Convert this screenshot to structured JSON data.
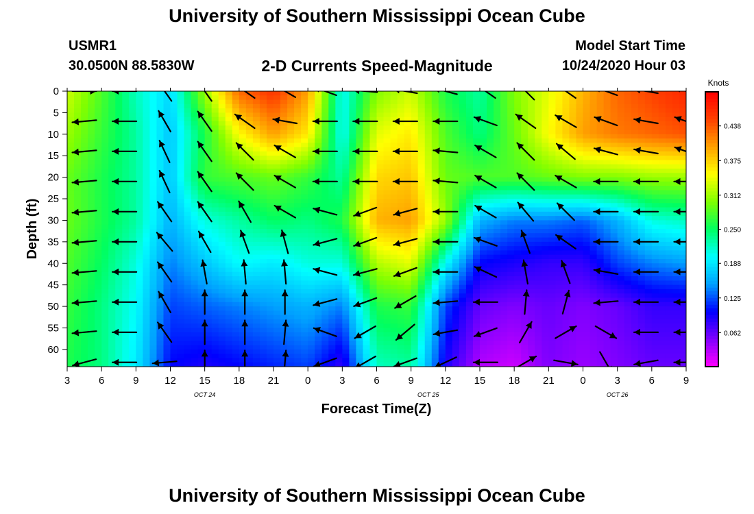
{
  "header": {
    "title": "University of Southern Mississippi Ocean Cube",
    "station_id": "USMR1",
    "station_coords": "30.0500N 88.5830W",
    "chart_title": "2-D Currents Speed-Magnitude",
    "model_start_label": "Model Start Time",
    "model_start_value": "10/24/2020 Hour 03"
  },
  "footer": {
    "title": "University of Southern Mississippi Ocean Cube"
  },
  "chart_data": {
    "type": "heatmap",
    "xlabel": "Forecast Time(Z)",
    "ylabel": "Depth (ft)",
    "x_tick_labels": [
      "3",
      "6",
      "9",
      "12",
      "15",
      "18",
      "21",
      "0",
      "3",
      "6",
      "9",
      "12",
      "15",
      "18",
      "21",
      "0",
      "3",
      "6",
      "9"
    ],
    "date_labels": [
      {
        "label": "OCT 24",
        "at_tick": 4
      },
      {
        "label": "OCT 25",
        "at_tick": 10.5
      },
      {
        "label": "OCT 26",
        "at_tick": 16
      }
    ],
    "y_ticks": [
      0,
      5,
      10,
      15,
      20,
      25,
      30,
      35,
      40,
      45,
      50,
      55,
      60
    ],
    "ylim": [
      0,
      64
    ],
    "colorbar": {
      "unit": "Knots",
      "ticks": [
        "0.438",
        "0.375",
        "0.312",
        "0.250",
        "0.188",
        "0.125",
        "0.062"
      ],
      "tick_values": [
        0.438,
        0.375,
        0.312,
        0.25,
        0.188,
        0.125,
        0.062
      ],
      "range": [
        0.0,
        0.5
      ],
      "colors": [
        "#ff00ff",
        "#8000ff",
        "#0000ff",
        "#00a0ff",
        "#00ffff",
        "#00ff60",
        "#80ff00",
        "#ffff00",
        "#ffa000",
        "#ff4000",
        "#ff0000"
      ]
    },
    "speed_grid_rows_depth_ft": [
      0,
      10,
      20,
      30,
      40,
      50,
      64
    ],
    "speed_grid_cols_forecast_hours": [
      0,
      3,
      6,
      9,
      12,
      15,
      18,
      21,
      24,
      27,
      30,
      33,
      36,
      39,
      42,
      45,
      48,
      51,
      54
    ],
    "speed_knots": [
      [
        0.33,
        0.28,
        0.22,
        0.18,
        0.31,
        0.43,
        0.46,
        0.4,
        0.2,
        0.3,
        0.33,
        0.26,
        0.23,
        0.3,
        0.34,
        0.39,
        0.43,
        0.45,
        0.47
      ],
      [
        0.31,
        0.27,
        0.23,
        0.17,
        0.26,
        0.35,
        0.4,
        0.36,
        0.2,
        0.34,
        0.36,
        0.28,
        0.24,
        0.29,
        0.35,
        0.4,
        0.42,
        0.43,
        0.44
      ],
      [
        0.29,
        0.26,
        0.23,
        0.17,
        0.27,
        0.28,
        0.29,
        0.27,
        0.23,
        0.37,
        0.38,
        0.29,
        0.28,
        0.28,
        0.29,
        0.3,
        0.3,
        0.31,
        0.31
      ],
      [
        0.29,
        0.26,
        0.23,
        0.16,
        0.21,
        0.23,
        0.25,
        0.24,
        0.26,
        0.39,
        0.4,
        0.31,
        0.16,
        0.14,
        0.14,
        0.13,
        0.16,
        0.21,
        0.22
      ],
      [
        0.28,
        0.25,
        0.21,
        0.14,
        0.17,
        0.2,
        0.19,
        0.21,
        0.21,
        0.32,
        0.34,
        0.2,
        0.1,
        0.09,
        0.08,
        0.08,
        0.12,
        0.14,
        0.15
      ],
      [
        0.27,
        0.24,
        0.2,
        0.12,
        0.13,
        0.14,
        0.15,
        0.16,
        0.14,
        0.26,
        0.27,
        0.12,
        0.06,
        0.05,
        0.06,
        0.05,
        0.06,
        0.08,
        0.08
      ],
      [
        0.26,
        0.24,
        0.19,
        0.1,
        0.09,
        0.1,
        0.11,
        0.12,
        0.08,
        0.22,
        0.23,
        0.09,
        0.03,
        0.02,
        0.05,
        0.04,
        0.05,
        0.06,
        0.06
      ]
    ],
    "vector_rows_depth_ft": [
      0,
      7,
      14,
      21,
      28,
      35,
      42,
      49,
      56,
      63
    ],
    "vector_cols_forecast_hours": [
      1.5,
      5,
      8.5,
      12,
      15.5,
      19,
      22.5,
      26,
      29.5,
      33,
      36.5,
      40,
      43.5,
      47,
      50.5,
      54
    ],
    "vector_direction_deg": [
      [
        0,
        180,
        235,
        235,
        215,
        210,
        200,
        185,
        190,
        195,
        215,
        225,
        215,
        200,
        190,
        200
      ],
      [
        175,
        180,
        240,
        235,
        215,
        190,
        180,
        180,
        180,
        180,
        200,
        215,
        210,
        200,
        190,
        200
      ],
      [
        175,
        180,
        245,
        235,
        225,
        210,
        180,
        180,
        180,
        185,
        210,
        225,
        220,
        195,
        190,
        200
      ],
      [
        175,
        180,
        245,
        235,
        225,
        210,
        180,
        180,
        180,
        185,
        210,
        225,
        210,
        180,
        180,
        180
      ],
      [
        175,
        180,
        235,
        235,
        240,
        210,
        195,
        160,
        165,
        180,
        210,
        230,
        225,
        180,
        180,
        180
      ],
      [
        175,
        180,
        230,
        240,
        250,
        255,
        165,
        160,
        165,
        180,
        200,
        250,
        215,
        180,
        180,
        180
      ],
      [
        175,
        180,
        235,
        260,
        265,
        265,
        195,
        165,
        160,
        180,
        205,
        260,
        250,
        190,
        180,
        180
      ],
      [
        175,
        180,
        240,
        270,
        270,
        270,
        165,
        160,
        150,
        175,
        180,
        275,
        285,
        175,
        180,
        180
      ],
      [
        175,
        180,
        235,
        270,
        270,
        275,
        200,
        150,
        140,
        170,
        160,
        300,
        330,
        30,
        180,
        180
      ],
      [
        165,
        180,
        175,
        270,
        270,
        275,
        160,
        150,
        160,
        155,
        180,
        330,
        10,
        60,
        170,
        180
      ]
    ],
    "annotations": []
  }
}
